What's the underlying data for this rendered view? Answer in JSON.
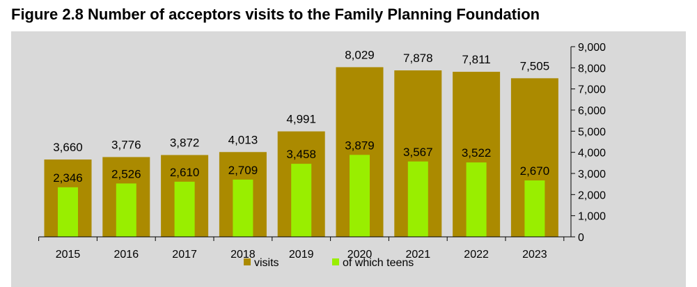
{
  "title": "Figure 2.8 Number of acceptors visits to the Family Planning Foundation",
  "colors": {
    "plot_background": "#d9d9d9",
    "visits": "#ab8a00",
    "teens": "#99ee00",
    "axis": "#000000"
  },
  "chart_data": {
    "type": "bar",
    "categories": [
      "2015",
      "2016",
      "2017",
      "2018",
      "2019",
      "2020",
      "2021",
      "2022",
      "2023"
    ],
    "series": [
      {
        "name": "visits",
        "values": [
          3660,
          3776,
          3872,
          4013,
          4991,
          8029,
          7878,
          7811,
          7505
        ],
        "labels": [
          "3,660",
          "3,776",
          "3,872",
          "4,013",
          "4,991",
          "8,029",
          "7,878",
          "7,811",
          "7,505"
        ]
      },
      {
        "name": "of which teens",
        "values": [
          2346,
          2526,
          2610,
          2709,
          3458,
          3879,
          3567,
          3522,
          2670
        ],
        "labels": [
          "2,346",
          "2,526",
          "2,610",
          "2,709",
          "3,458",
          "3,879",
          "3,567",
          "3,522",
          "2,670"
        ]
      }
    ],
    "ylim": [
      0,
      9000
    ],
    "yticks": [
      0,
      1000,
      2000,
      3000,
      4000,
      5000,
      6000,
      7000,
      8000,
      9000
    ],
    "ytick_labels": [
      "0",
      "1,000",
      "2,000",
      "3,000",
      "4,000",
      "5,000",
      "6,000",
      "7,000",
      "8,000",
      "9,000"
    ],
    "y_axis_side": "right",
    "overlapped_bars": true,
    "grid": false,
    "legend_position": "bottom"
  }
}
